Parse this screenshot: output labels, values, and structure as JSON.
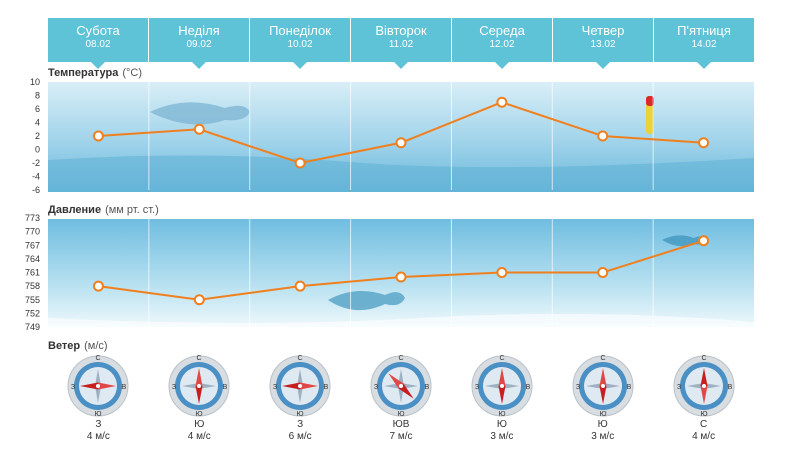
{
  "days": [
    {
      "name": "Субота",
      "date": "08.02"
    },
    {
      "name": "Неділя",
      "date": "09.02"
    },
    {
      "name": "Понеділок",
      "date": "10.02"
    },
    {
      "name": "Вівторок",
      "date": "11.02"
    },
    {
      "name": "Середа",
      "date": "12.02"
    },
    {
      "name": "Четвер",
      "date": "13.02"
    },
    {
      "name": "П'ятниця",
      "date": "14.02"
    }
  ],
  "sections": {
    "temperature": {
      "title": "Температура",
      "unit": "(°C)"
    },
    "pressure": {
      "title": "Давление",
      "unit": "(мм рт. ст.)"
    },
    "wind": {
      "title": "Ветер",
      "unit": "(м/с)"
    }
  },
  "compass_labels": {
    "north": "С",
    "south": "Ю",
    "west": "З",
    "east": "В"
  },
  "colors": {
    "accent": "#5fc3d7",
    "line": "#f07f1e",
    "needle": "#c81e1e",
    "water": "#8fcde6"
  },
  "chart_data": [
    {
      "type": "line",
      "categories": [
        "08.02",
        "09.02",
        "10.02",
        "11.02",
        "12.02",
        "13.02",
        "14.02"
      ],
      "series": [
        {
          "values": [
            2,
            3,
            -2,
            1,
            7,
            2,
            1
          ]
        }
      ],
      "ylim": [
        -6,
        10
      ],
      "yticks": [
        10,
        8,
        6,
        4,
        2,
        0,
        -2,
        -4,
        -6
      ],
      "grid": true
    },
    {
      "type": "line",
      "categories": [
        "08.02",
        "09.02",
        "10.02",
        "11.02",
        "12.02",
        "13.02",
        "14.02"
      ],
      "series": [
        {
          "values": [
            758,
            755,
            758,
            760,
            761,
            761,
            768
          ]
        }
      ],
      "ylim": [
        749,
        773
      ],
      "yticks": [
        773,
        770,
        767,
        764,
        761,
        758,
        755,
        752,
        749
      ],
      "grid": true
    }
  ],
  "wind": [
    {
      "dir": "З",
      "speed": "4 м/с",
      "deg": 270
    },
    {
      "dir": "Ю",
      "speed": "4 м/с",
      "deg": 180
    },
    {
      "dir": "З",
      "speed": "6 м/с",
      "deg": 270
    },
    {
      "dir": "ЮВ",
      "speed": "7 м/с",
      "deg": 135
    },
    {
      "dir": "Ю",
      "speed": "3 м/с",
      "deg": 180
    },
    {
      "dir": "Ю",
      "speed": "3 м/с",
      "deg": 180
    },
    {
      "dir": "С",
      "speed": "4 м/с",
      "deg": 0
    }
  ]
}
